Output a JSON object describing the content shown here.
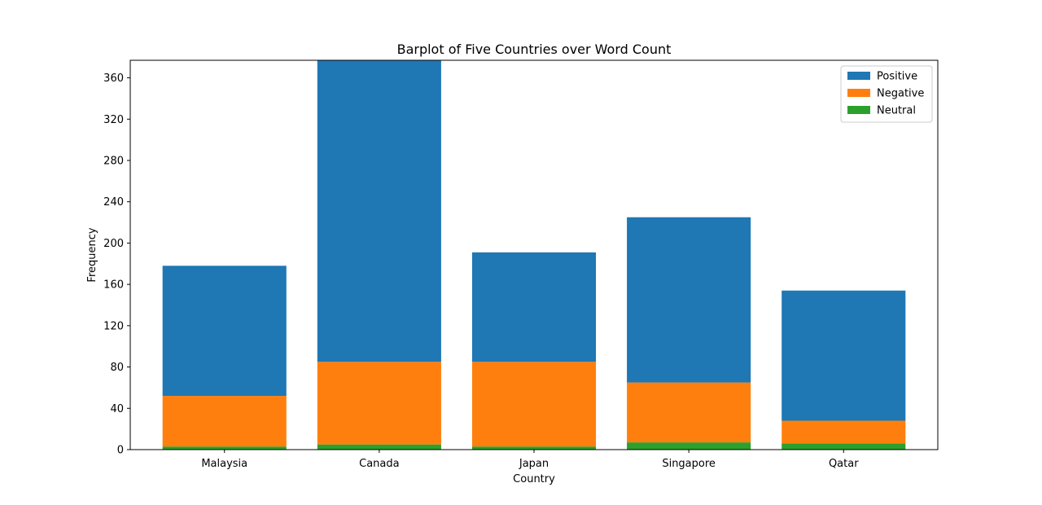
{
  "chart_data": {
    "type": "bar",
    "stacked": true,
    "title": "Barplot of Five Countries over Word Count",
    "xlabel": "Country",
    "ylabel": "Frequency",
    "categories": [
      "Malaysia",
      "Canada",
      "Japan",
      "Singapore",
      "Qatar"
    ],
    "ylim": [
      0,
      377
    ],
    "yticks": [
      0,
      40,
      80,
      120,
      160,
      200,
      240,
      280,
      320,
      360
    ],
    "series": [
      {
        "name": "Neutral",
        "color": "#2ca02c",
        "values": [
          3,
          5,
          3,
          7,
          6
        ]
      },
      {
        "name": "Negative",
        "color": "#ff7f0e",
        "values": [
          49,
          80,
          82,
          58,
          22
        ]
      },
      {
        "name": "Positive",
        "color": "#1f77b4",
        "values": [
          126,
          292,
          106,
          160,
          126
        ]
      }
    ],
    "legend": {
      "position": "top-right",
      "order": [
        "Positive",
        "Negative",
        "Neutral"
      ]
    },
    "grid": false
  }
}
